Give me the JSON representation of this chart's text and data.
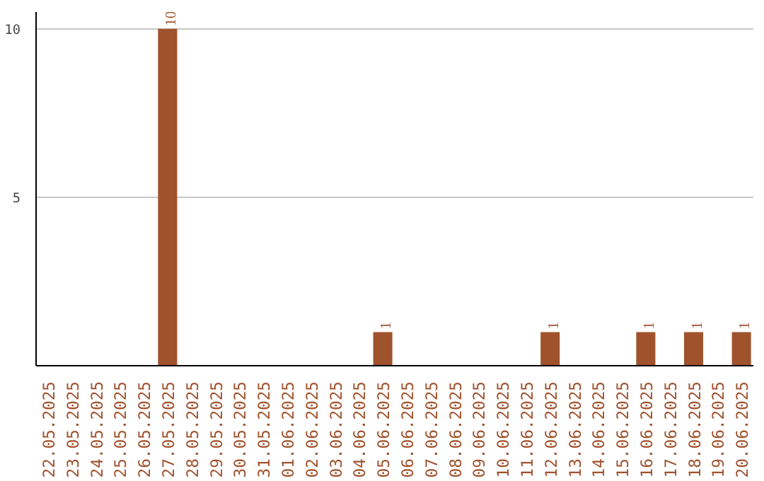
{
  "chart_data": {
    "type": "bar",
    "categories": [
      "22.05.2025",
      "23.05.2025",
      "24.05.2025",
      "25.05.2025",
      "26.05.2025",
      "27.05.2025",
      "28.05.2025",
      "29.05.2025",
      "30.05.2025",
      "31.05.2025",
      "01.06.2025",
      "02.06.2025",
      "03.06.2025",
      "04.06.2025",
      "05.06.2025",
      "06.06.2025",
      "07.06.2025",
      "08.06.2025",
      "09.06.2025",
      "10.06.2025",
      "11.06.2025",
      "12.06.2025",
      "13.06.2025",
      "14.06.2025",
      "15.06.2025",
      "16.06.2025",
      "17.06.2025",
      "18.06.2025",
      "19.06.2025",
      "20.06.2025"
    ],
    "values": [
      0,
      0,
      0,
      0,
      0,
      10,
      0,
      0,
      0,
      0,
      0,
      0,
      0,
      0,
      1,
      0,
      0,
      0,
      0,
      0,
      0,
      1,
      0,
      0,
      0,
      1,
      0,
      1,
      0,
      1
    ],
    "value_labels": [
      null,
      null,
      null,
      null,
      null,
      "10",
      null,
      null,
      null,
      null,
      null,
      null,
      null,
      null,
      "1",
      null,
      null,
      null,
      null,
      null,
      null,
      "1",
      null,
      null,
      null,
      "1",
      null,
      "1",
      null,
      "1"
    ],
    "color": "#a0522d",
    "ylim": [
      0,
      10.5
    ],
    "yticks": [
      5,
      10
    ],
    "grid": "y"
  }
}
